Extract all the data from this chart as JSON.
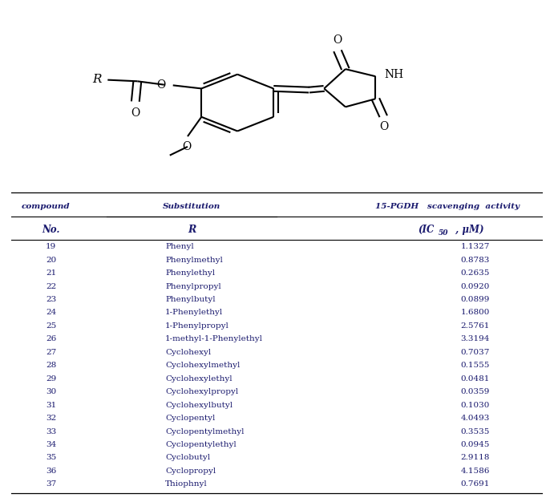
{
  "compounds": [
    {
      "no": "19",
      "substitution": "Phenyl",
      "ic50": "1.1327"
    },
    {
      "no": "20",
      "substitution": "Phenylmethyl",
      "ic50": "0.8783"
    },
    {
      "no": "21",
      "substitution": "Phenylethyl",
      "ic50": "0.2635"
    },
    {
      "no": "22",
      "substitution": "Phenylpropyl",
      "ic50": "0.0920"
    },
    {
      "no": "23",
      "substitution": "Phenylbutyl",
      "ic50": "0.0899"
    },
    {
      "no": "24",
      "substitution": "1-Phenylethyl",
      "ic50": "1.6800"
    },
    {
      "no": "25",
      "substitution": "1-Phenylpropyl",
      "ic50": "2.5761"
    },
    {
      "no": "26",
      "substitution": "1-methyl-1-Phenylethyl",
      "ic50": "3.3194"
    },
    {
      "no": "27",
      "substitution": "Cyclohexyl",
      "ic50": "0.7037"
    },
    {
      "no": "28",
      "substitution": "Cyclohexylmethyl",
      "ic50": "0.1555"
    },
    {
      "no": "29",
      "substitution": "Cyclohexylethyl",
      "ic50": "0.0481"
    },
    {
      "no": "30",
      "substitution": "Cyclohexylpropyl",
      "ic50": "0.0359"
    },
    {
      "no": "31",
      "substitution": "Cyclohexylbutyl",
      "ic50": "0.1030"
    },
    {
      "no": "32",
      "substitution": "Cyclopentyl",
      "ic50": "4.0493"
    },
    {
      "no": "33",
      "substitution": "Cyclopentylmethyl",
      "ic50": "0.3535"
    },
    {
      "no": "34",
      "substitution": "Cyclopentylethyl",
      "ic50": "0.0945"
    },
    {
      "no": "35",
      "substitution": "Cyclobutyl",
      "ic50": "2.9118"
    },
    {
      "no": "36",
      "substitution": "Cyclopropyl",
      "ic50": "4.1586"
    },
    {
      "no": "37",
      "substitution": "Thiophnyl",
      "ic50": "0.7691"
    }
  ],
  "header1_col1": "compound",
  "header1_col2": "Substitution",
  "header1_col3": "15-PGDH   scavenging  activity",
  "header2_col1": "No.",
  "header2_col2": "R",
  "header2_col3": "(IC50 , μM)",
  "text_color": "#1a1a6e",
  "bg_color": "#ffffff",
  "lw": 1.5
}
